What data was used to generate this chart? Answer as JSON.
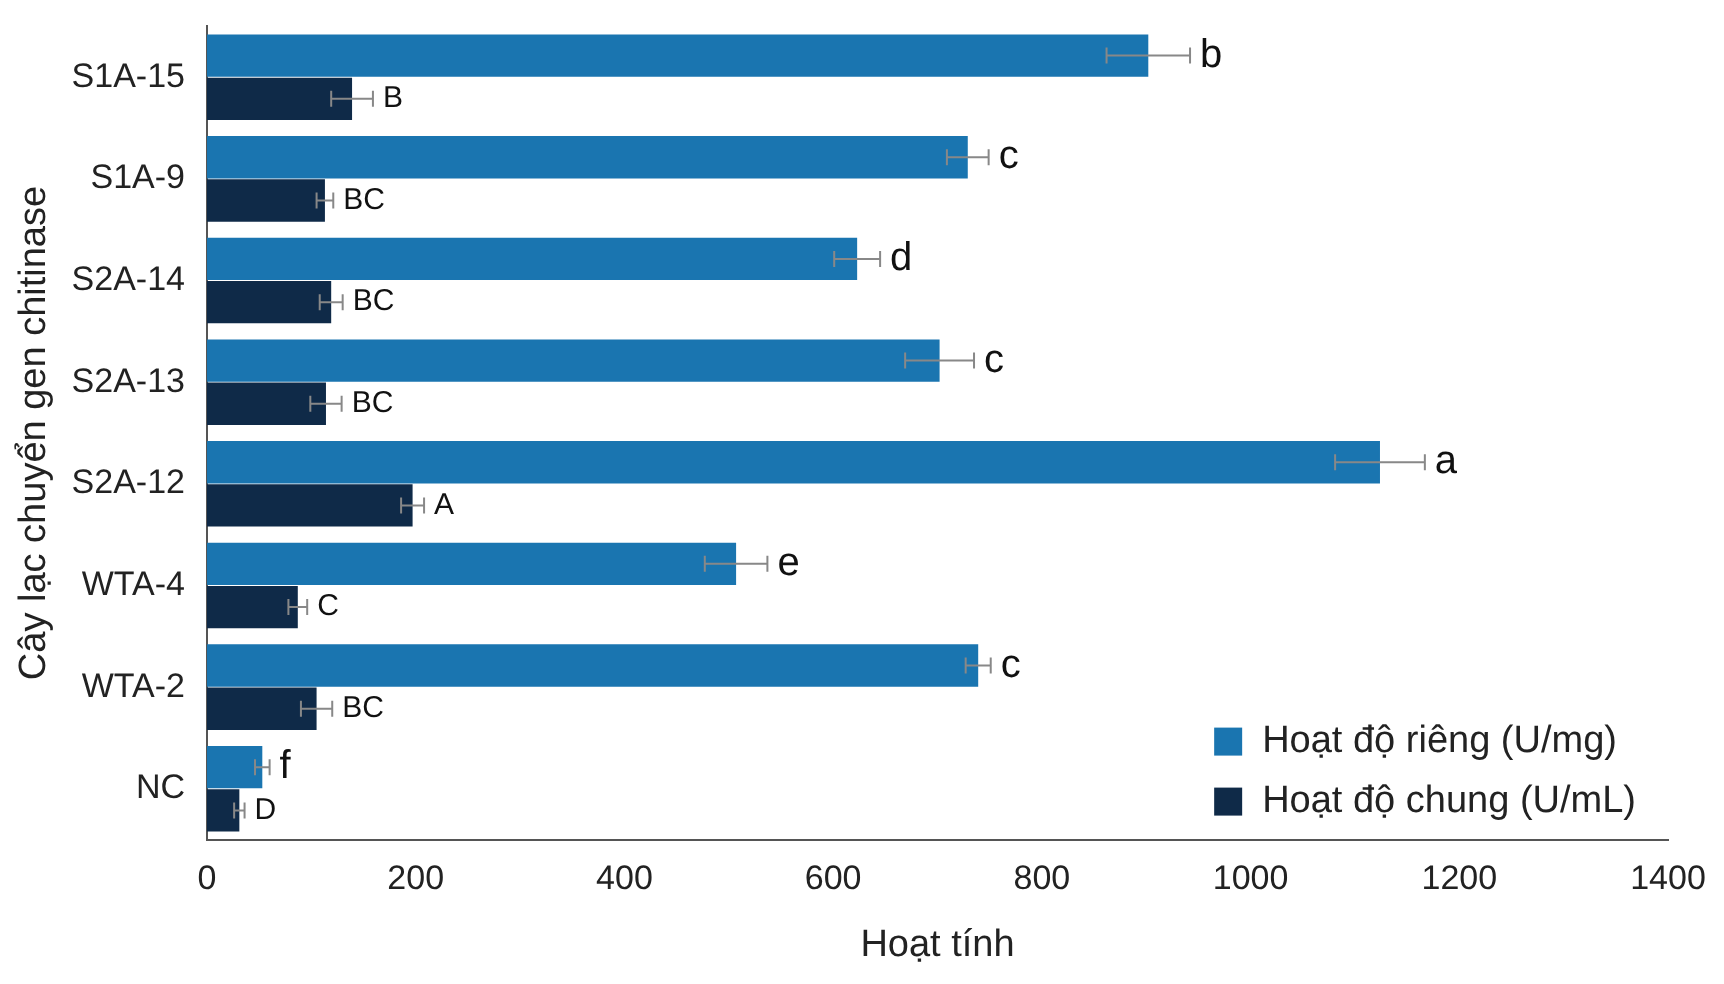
{
  "chart_data": {
    "type": "bar",
    "orientation": "horizontal",
    "xlabel": "Hoạt tính",
    "ylabel": "Cây lạc chuyển gen chitinase",
    "categories": [
      "S1A-15",
      "S1A-9",
      "S2A-14",
      "S2A-13",
      "S2A-12",
      "WTA-4",
      "WTA-2",
      "NC"
    ],
    "series": [
      {
        "name": "Hoạt độ riêng (U/mg)",
        "color": "#1a75b0",
        "values": [
          902,
          729,
          623,
          702,
          1124,
          507,
          739,
          53
        ],
        "errors": [
          40,
          20,
          22,
          33,
          43,
          30,
          12,
          7
        ],
        "value_labels": [
          "b",
          "c",
          "d",
          "c",
          "a",
          "e",
          "c",
          "f"
        ]
      },
      {
        "name": "Hoạt độ chung (U/mL)",
        "color": "#0f2a48",
        "values": [
          139,
          113,
          119,
          114,
          197,
          87,
          105,
          31
        ],
        "errors": [
          20,
          8,
          11,
          15,
          11,
          9,
          15,
          5
        ],
        "value_labels": [
          "B",
          "BC",
          "BC",
          "BC",
          "A",
          "C",
          "BC",
          "D"
        ]
      }
    ],
    "xlim": [
      0,
      1400
    ],
    "xticks": [
      0,
      200,
      400,
      600,
      800,
      1000,
      1200,
      1400
    ],
    "grid": false,
    "legend": "bottom right"
  }
}
